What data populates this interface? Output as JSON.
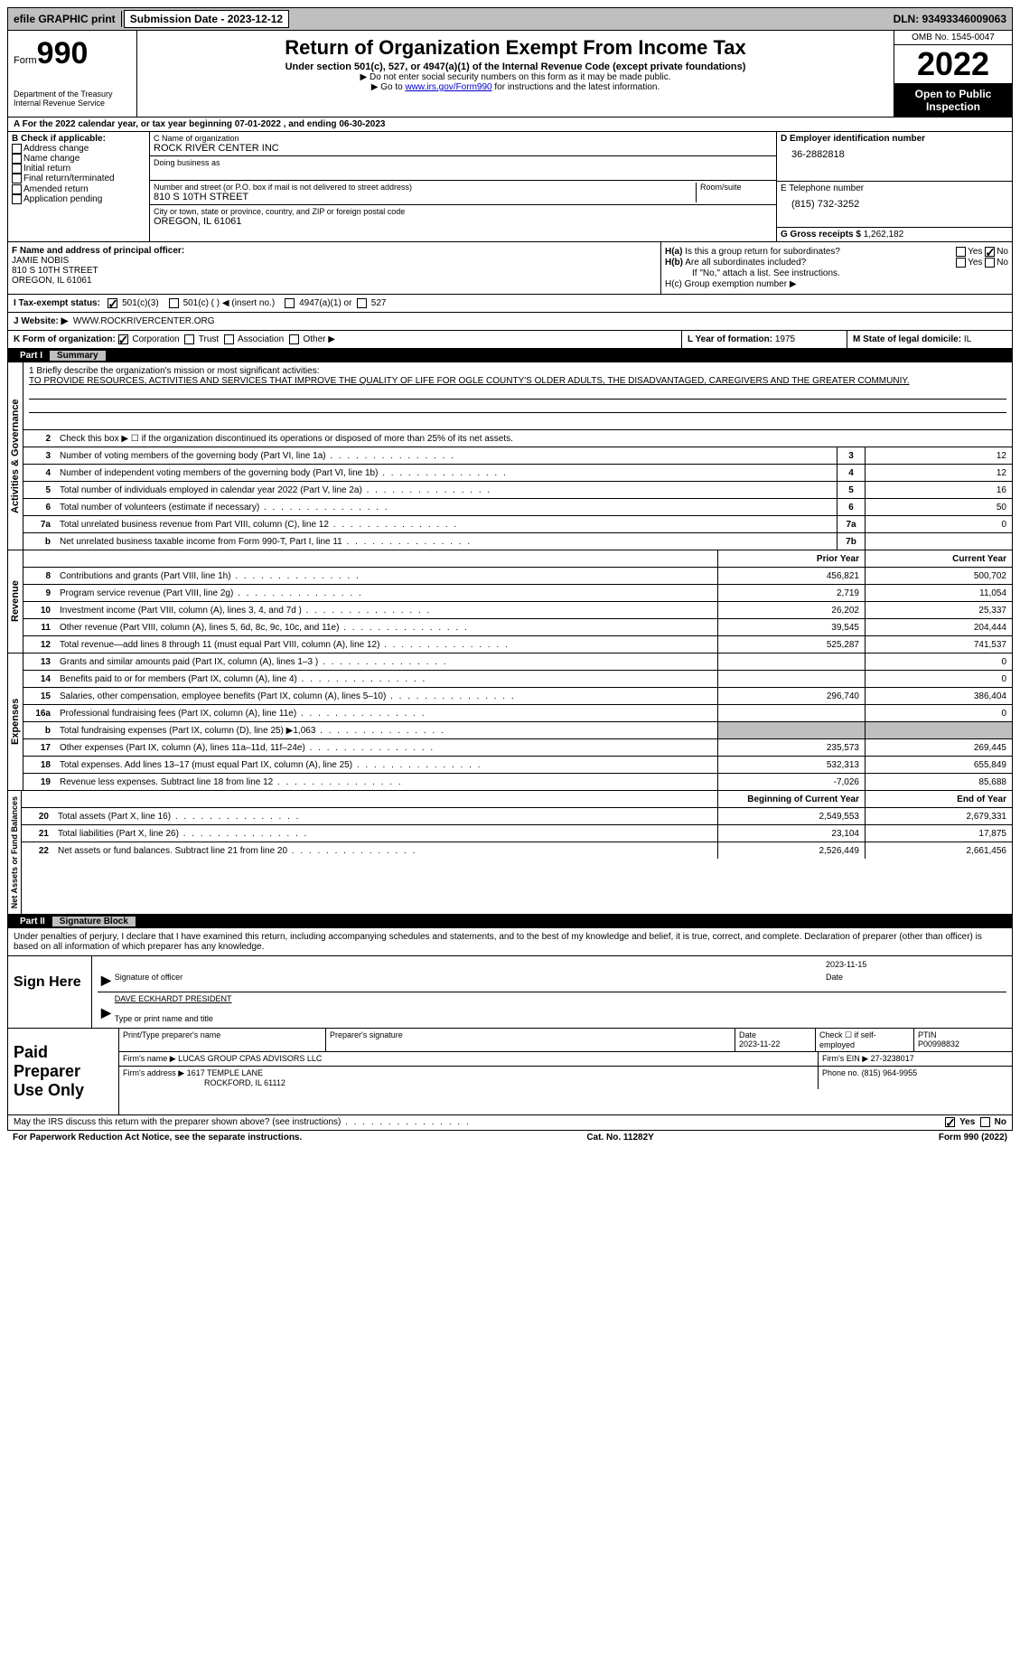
{
  "topbar": {
    "efile": "efile GRAPHIC print",
    "subdate_label": "Submission Date - 2023-12-12",
    "dln": "DLN: 93493346009063"
  },
  "header": {
    "form_prefix": "Form",
    "form_num": "990",
    "dept": "Department of the Treasury\nInternal Revenue Service",
    "title": "Return of Organization Exempt From Income Tax",
    "subtitle": "Under section 501(c), 527, or 4947(a)(1) of the Internal Revenue Code (except private foundations)",
    "note1": "▶ Do not enter social security numbers on this form as it may be made public.",
    "note2_pre": "▶ Go to ",
    "note2_link": "www.irs.gov/Form990",
    "note2_post": " for instructions and the latest information.",
    "omb": "OMB No. 1545-0047",
    "year": "2022",
    "open": "Open to Public Inspection"
  },
  "period": {
    "text": "A For the 2022 calendar year, or tax year beginning 07-01-2022     , and ending 06-30-2023"
  },
  "sectionB": {
    "header": "B Check if applicable:",
    "opts": [
      "Address change",
      "Name change",
      "Initial return",
      "Final return/terminated",
      "Amended return",
      "Application pending"
    ],
    "c_label": "C Name of organization",
    "org_name": "ROCK RIVER CENTER INC",
    "dba_label": "Doing business as",
    "street_label": "Number and street (or P.O. box if mail is not delivered to street address)",
    "room_label": "Room/suite",
    "street": "810 S 10TH STREET",
    "city_label": "City or town, state or province, country, and ZIP or foreign postal code",
    "city": "OREGON, IL  61061",
    "d_label": "D Employer identification number",
    "ein": "36-2882818",
    "e_label": "E Telephone number",
    "phone": "(815) 732-3252",
    "g_label": "G Gross receipts $",
    "gross": "1,262,182"
  },
  "sectionF": {
    "label": "F Name and address of principal officer:",
    "name": "JAMIE NOBIS",
    "addr1": "810 S 10TH STREET",
    "addr2": "OREGON, IL  61061",
    "ha": "H(a)  Is this a group return for subordinates?",
    "hb": "H(b)  Are all subordinates included?",
    "hb_note": "If \"No,\" attach a list. See instructions.",
    "hc": "H(c)  Group exemption number ▶",
    "yes": "Yes",
    "no": "No"
  },
  "statusI": {
    "label": "I   Tax-exempt status:",
    "c3": "501(c)(3)",
    "c_other": "501(c) (   ) ◀ (insert no.)",
    "a1": "4947(a)(1) or",
    "s527": "527"
  },
  "websiteJ": {
    "label": "J   Website: ▶",
    "url": "WWW.ROCKRIVERCENTER.ORG"
  },
  "formK": {
    "label": "K Form of organization:",
    "opts": [
      "Corporation",
      "Trust",
      "Association",
      "Other ▶"
    ],
    "l_label": "L Year of formation:",
    "l_val": "1975",
    "m_label": "M State of legal domicile:",
    "m_val": "IL"
  },
  "part1": {
    "num": "Part I",
    "title": "Summary",
    "tabs": [
      "Activities & Governance",
      "Revenue",
      "Expenses",
      "Net Assets or Fund Balances"
    ],
    "mission_label": "1   Briefly describe the organization's mission or most significant activities:",
    "mission": "TO PROVIDE RESOURCES, ACTIVITIES AND SERVICES THAT IMPROVE THE QUALITY OF LIFE FOR OGLE COUNTY'S OLDER ADULTS, THE DISADVANTAGED, CAREGIVERS AND THE GREATER COMMUNIY.",
    "line2": "Check this box ▶ ☐ if the organization discontinued its operations or disposed of more than 25% of its net assets.",
    "lines_a": [
      {
        "n": "3",
        "d": "Number of voting members of the governing body (Part VI, line 1a)",
        "box": "3",
        "v": "12"
      },
      {
        "n": "4",
        "d": "Number of independent voting members of the governing body (Part VI, line 1b)",
        "box": "4",
        "v": "12"
      },
      {
        "n": "5",
        "d": "Total number of individuals employed in calendar year 2022 (Part V, line 2a)",
        "box": "5",
        "v": "16"
      },
      {
        "n": "6",
        "d": "Total number of volunteers (estimate if necessary)",
        "box": "6",
        "v": "50"
      },
      {
        "n": "7a",
        "d": "Total unrelated business revenue from Part VIII, column (C), line 12",
        "box": "7a",
        "v": "0"
      },
      {
        "n": "b",
        "d": "Net unrelated business taxable income from Form 990-T, Part I, line 11",
        "box": "7b",
        "v": ""
      }
    ],
    "col_prior": "Prior Year",
    "col_current": "Current Year",
    "lines_rev": [
      {
        "n": "8",
        "d": "Contributions and grants (Part VIII, line 1h)",
        "p": "456,821",
        "c": "500,702"
      },
      {
        "n": "9",
        "d": "Program service revenue (Part VIII, line 2g)",
        "p": "2,719",
        "c": "11,054"
      },
      {
        "n": "10",
        "d": "Investment income (Part VIII, column (A), lines 3, 4, and 7d )",
        "p": "26,202",
        "c": "25,337"
      },
      {
        "n": "11",
        "d": "Other revenue (Part VIII, column (A), lines 5, 6d, 8c, 9c, 10c, and 11e)",
        "p": "39,545",
        "c": "204,444"
      },
      {
        "n": "12",
        "d": "Total revenue—add lines 8 through 11 (must equal Part VIII, column (A), line 12)",
        "p": "525,287",
        "c": "741,537"
      }
    ],
    "lines_exp": [
      {
        "n": "13",
        "d": "Grants and similar amounts paid (Part IX, column (A), lines 1–3 )",
        "p": "",
        "c": "0"
      },
      {
        "n": "14",
        "d": "Benefits paid to or for members (Part IX, column (A), line 4)",
        "p": "",
        "c": "0"
      },
      {
        "n": "15",
        "d": "Salaries, other compensation, employee benefits (Part IX, column (A), lines 5–10)",
        "p": "296,740",
        "c": "386,404"
      },
      {
        "n": "16a",
        "d": "Professional fundraising fees (Part IX, column (A), line 11e)",
        "p": "",
        "c": "0"
      },
      {
        "n": "b",
        "d": "Total fundraising expenses (Part IX, column (D), line 25) ▶1,063",
        "p": "shade",
        "c": "shade"
      },
      {
        "n": "17",
        "d": "Other expenses (Part IX, column (A), lines 11a–11d, 11f–24e)",
        "p": "235,573",
        "c": "269,445"
      },
      {
        "n": "18",
        "d": "Total expenses. Add lines 13–17 (must equal Part IX, column (A), line 25)",
        "p": "532,313",
        "c": "655,849"
      },
      {
        "n": "19",
        "d": "Revenue less expenses. Subtract line 18 from line 12",
        "p": "-7,026",
        "c": "85,688"
      }
    ],
    "col_begin": "Beginning of Current Year",
    "col_end": "End of Year",
    "lines_net": [
      {
        "n": "20",
        "d": "Total assets (Part X, line 16)",
        "p": "2,549,553",
        "c": "2,679,331"
      },
      {
        "n": "21",
        "d": "Total liabilities (Part X, line 26)",
        "p": "23,104",
        "c": "17,875"
      },
      {
        "n": "22",
        "d": "Net assets or fund balances. Subtract line 21 from line 20",
        "p": "2,526,449",
        "c": "2,661,456"
      }
    ]
  },
  "part2": {
    "num": "Part II",
    "title": "Signature Block",
    "penalty": "Under penalties of perjury, I declare that I have examined this return, including accompanying schedules and statements, and to the best of my knowledge and belief, it is true, correct, and complete. Declaration of preparer (other than officer) is based on all information of which preparer has any knowledge.",
    "sign_here": "Sign Here",
    "sig_officer": "Signature of officer",
    "date": "Date",
    "sig_date": "2023-11-15",
    "officer_name": "DAVE ECKHARDT PRESIDENT",
    "type_name": "Type or print name and title",
    "paid_prep": "Paid Preparer Use Only",
    "prep_name_label": "Print/Type preparer's name",
    "prep_sig_label": "Preparer's signature",
    "prep_date_label": "Date",
    "prep_date": "2023-11-22",
    "check_self": "Check ☐ if self-employed",
    "ptin_label": "PTIN",
    "ptin": "P00998832",
    "firm_name_label": "Firm's name    ▶",
    "firm_name": "LUCAS GROUP CPAS ADVISORS LLC",
    "firm_ein_label": "Firm's EIN ▶",
    "firm_ein": "27-3238017",
    "firm_addr_label": "Firm's address ▶",
    "firm_addr1": "1617 TEMPLE LANE",
    "firm_addr2": "ROCKFORD, IL  61112",
    "phone_label": "Phone no.",
    "phone": "(815) 964-9955",
    "may_irs": "May the IRS discuss this return with the preparer shown above? (see instructions)",
    "paperwork": "For Paperwork Reduction Act Notice, see the separate instructions.",
    "cat": "Cat. No. 11282Y",
    "form_foot": "Form 990 (2022)"
  }
}
